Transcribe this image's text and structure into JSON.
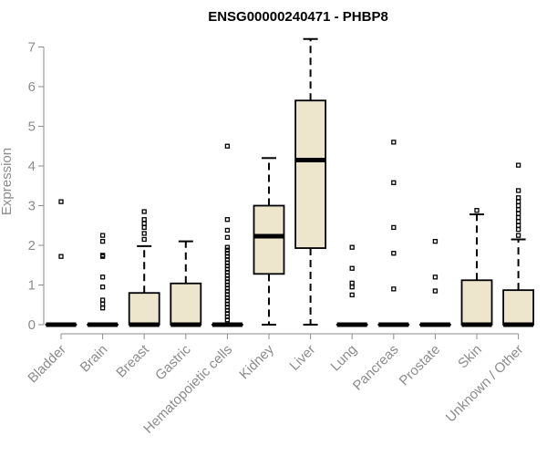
{
  "chart_data": {
    "type": "box",
    "title": "ENSG00000240471 - PHBP8",
    "xlabel": "",
    "ylabel": "Expression",
    "ylim": [
      0,
      7
    ],
    "yticks": [
      0,
      1,
      2,
      3,
      4,
      5,
      6,
      7
    ],
    "categories": [
      "Bladder",
      "Brain",
      "Breast",
      "Gastric",
      "Hematopoietic cells",
      "Kidney",
      "Liver",
      "Lung",
      "Pancreas",
      "Prostate",
      "Skin",
      "Unknown / Other"
    ],
    "boxes": [
      {
        "category": "Bladder",
        "lower_whisker": 0,
        "q1": 0,
        "median": 0,
        "q3": 0,
        "upper_whisker": 0,
        "outliers": [
          1.72,
          3.1
        ]
      },
      {
        "category": "Brain",
        "lower_whisker": 0,
        "q1": 0,
        "median": 0,
        "q3": 0,
        "upper_whisker": 0,
        "outliers": [
          0.42,
          0.52,
          0.62,
          0.95,
          1.2,
          1.72,
          1.75,
          2.1,
          2.25
        ]
      },
      {
        "category": "Breast",
        "lower_whisker": 0,
        "q1": 0,
        "median": 0,
        "q3": 0.8,
        "upper_whisker": 1.98,
        "outliers": [
          2.15,
          2.3,
          2.45,
          2.55,
          2.65,
          2.85
        ]
      },
      {
        "category": "Gastric",
        "lower_whisker": 0,
        "q1": 0,
        "median": 0,
        "q3": 1.04,
        "upper_whisker": 2.1,
        "outliers": []
      },
      {
        "category": "Hematopoietic cells",
        "lower_whisker": 0,
        "q1": 0,
        "median": 0,
        "q3": 0,
        "upper_whisker": 0,
        "outliers": [
          0.12,
          0.2,
          0.28,
          0.36,
          0.44,
          0.52,
          0.6,
          0.68,
          0.76,
          0.84,
          0.92,
          1.0,
          1.08,
          1.16,
          1.24,
          1.32,
          1.4,
          1.48,
          1.56,
          1.64,
          1.72,
          1.8,
          1.88,
          1.95,
          2.2,
          2.38,
          2.65,
          4.5
        ]
      },
      {
        "category": "Kidney",
        "lower_whisker": 0,
        "q1": 1.28,
        "median": 2.23,
        "q3": 3.0,
        "upper_whisker": 4.2,
        "outliers": []
      },
      {
        "category": "Liver",
        "lower_whisker": 0,
        "q1": 1.93,
        "median": 4.15,
        "q3": 5.65,
        "upper_whisker": 7.2,
        "outliers": []
      },
      {
        "category": "Lung",
        "lower_whisker": 0,
        "q1": 0,
        "median": 0,
        "q3": 0,
        "upper_whisker": 0,
        "outliers": [
          0.75,
          0.95,
          1.05,
          1.42,
          1.95
        ]
      },
      {
        "category": "Pancreas",
        "lower_whisker": 0,
        "q1": 0,
        "median": 0,
        "q3": 0,
        "upper_whisker": 0,
        "outliers": [
          0.9,
          1.8,
          2.45,
          3.58,
          4.6
        ]
      },
      {
        "category": "Prostate",
        "lower_whisker": 0,
        "q1": 0,
        "median": 0,
        "q3": 0,
        "upper_whisker": 0,
        "outliers": [
          0.85,
          1.2,
          2.1
        ]
      },
      {
        "category": "Skin",
        "lower_whisker": 0,
        "q1": 0,
        "median": 0,
        "q3": 1.12,
        "upper_whisker": 2.78,
        "outliers": [
          2.88
        ]
      },
      {
        "category": "Unknown / Other",
        "lower_whisker": 0,
        "q1": 0,
        "median": 0,
        "q3": 0.87,
        "upper_whisker": 2.15,
        "outliers": [
          2.25,
          2.4,
          2.5,
          2.6,
          2.7,
          2.8,
          2.9,
          3.0,
          3.1,
          3.2,
          3.38,
          4.02
        ]
      }
    ],
    "colors": {
      "box_fill": "#ede6cd",
      "box_stroke": "#000000",
      "axis": "#8c8c8c",
      "title": "#000000"
    },
    "grid": false,
    "legend": "none"
  }
}
